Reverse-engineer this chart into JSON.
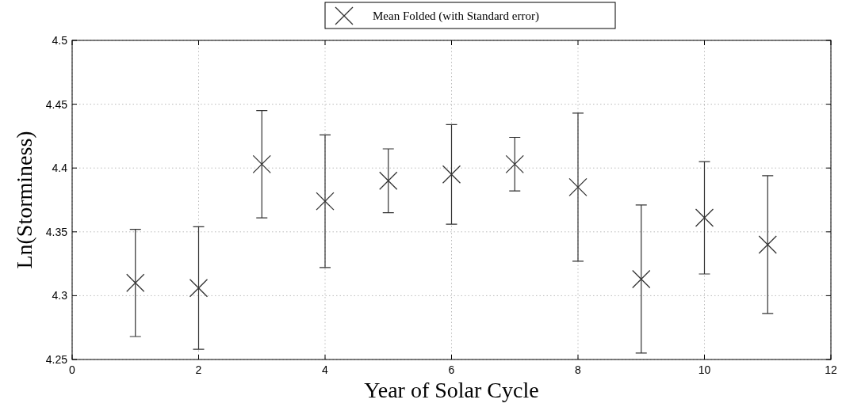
{
  "chart_data": {
    "type": "scatter",
    "xlabel": "Year of Solar Cycle",
    "ylabel": "Ln(Storminess)",
    "x": [
      1,
      2,
      3,
      4,
      5,
      6,
      7,
      8,
      9,
      10,
      11
    ],
    "series": [
      {
        "name": "Mean Folded (with Standard error)",
        "color": "#333333",
        "values": [
          4.31,
          4.306,
          4.403,
          4.374,
          4.39,
          4.395,
          4.403,
          4.385,
          4.313,
          4.361,
          4.34
        ],
        "errors": [
          0.042,
          0.048,
          0.042,
          0.052,
          0.025,
          0.039,
          0.021,
          0.058,
          0.058,
          0.044,
          0.054
        ]
      }
    ],
    "xlim": [
      0,
      12
    ],
    "xticks": [
      0,
      2,
      4,
      6,
      8,
      10,
      12
    ],
    "ylim": [
      4.25,
      4.5
    ],
    "yticks": [
      4.25,
      4.3,
      4.35,
      4.4,
      4.45,
      4.5
    ],
    "grid": true,
    "legend": "top",
    "marker": "cross"
  }
}
